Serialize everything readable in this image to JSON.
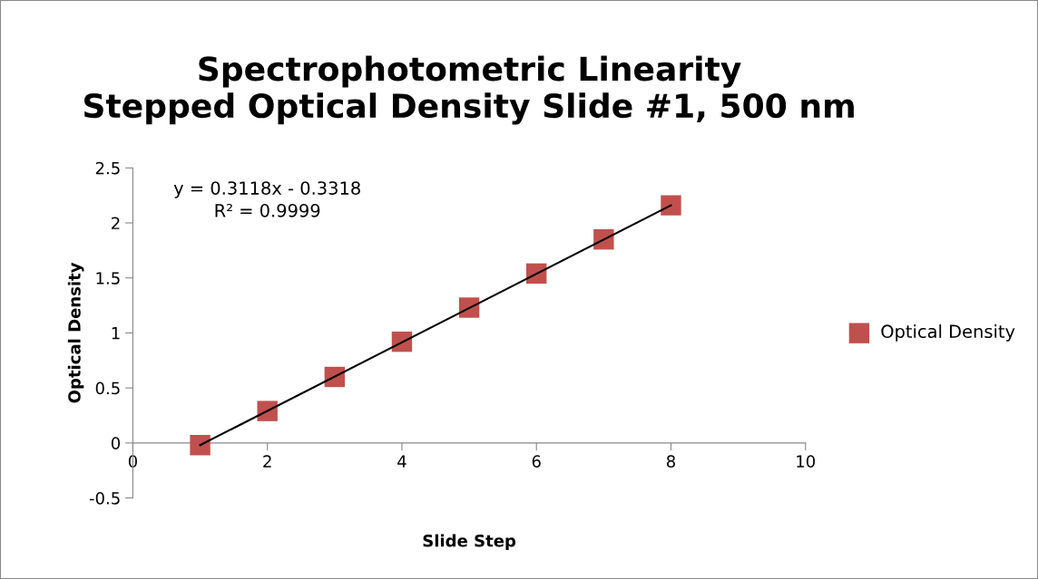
{
  "chart_data": {
    "type": "scatter",
    "title": "Spectrophotometric Linearity\nStepped Optical Density Slide #1, 500 nm",
    "xlabel": "Slide Step",
    "ylabel": "Optical Density",
    "series": [
      {
        "name": "Optical Density",
        "color": "#c0504d",
        "marker": "square",
        "x": [
          1,
          2,
          3,
          4,
          5,
          6,
          7,
          8
        ],
        "values": [
          -0.02,
          0.29,
          0.6,
          0.92,
          1.23,
          1.54,
          1.85,
          2.16
        ]
      },
      {
        "type": "line",
        "color": "#000000",
        "marker": "none",
        "x": [
          1,
          8
        ],
        "values": [
          -0.02,
          2.16
        ]
      }
    ],
    "annotations": [
      "y = 0.3118x - 0.3318\nR² = 0.9999"
    ],
    "xlim": [
      0,
      10
    ],
    "xticks": [
      0,
      2,
      4,
      6,
      8,
      10
    ],
    "ylim": [
      -0.5,
      2.5
    ],
    "yticks": [
      -0.5,
      0,
      0.5,
      1,
      1.5,
      2,
      2.5
    ],
    "grid": false,
    "legend": "right"
  }
}
